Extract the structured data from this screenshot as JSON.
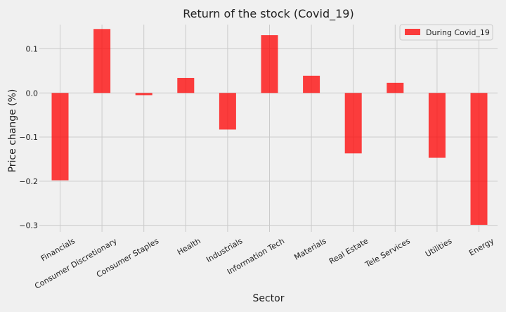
{
  "chart_data": {
    "type": "bar",
    "title": "Return of the stock (Covid_19)",
    "xlabel": "Sector",
    "ylabel": "Price change (%)",
    "categories": [
      "Financials",
      "Consumer Discretionary",
      "Consumer Staples",
      "Health",
      "Industrials",
      "Information Tech",
      "Materials",
      "Real Estate",
      "Tele Services",
      "Utilities",
      "Energy"
    ],
    "series": [
      {
        "name": "During Covid_19",
        "color": "#ff0000",
        "values": [
          -0.198,
          0.145,
          -0.005,
          0.034,
          -0.083,
          0.131,
          0.039,
          -0.137,
          0.023,
          -0.147,
          -0.299
        ]
      }
    ],
    "ylim": [
      -0.315,
      0.155
    ],
    "yticks": [
      0.1,
      0.0,
      -0.1,
      -0.2,
      -0.3
    ],
    "ytick_labels": [
      "0.1",
      "0.0",
      "−0.1",
      "−0.2",
      "−0.3"
    ],
    "grid": true,
    "legend_position": "top-right"
  }
}
